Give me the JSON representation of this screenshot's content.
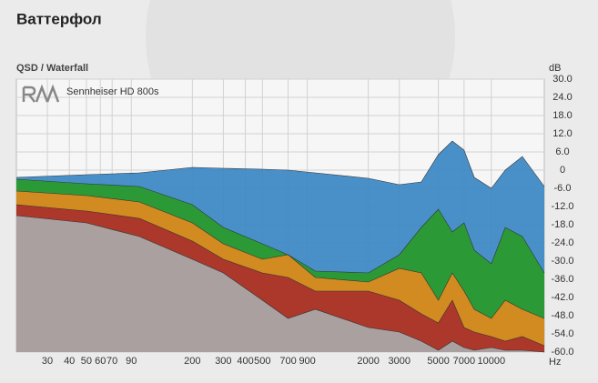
{
  "chart_data": {
    "type": "area",
    "title": "Ваттерфол",
    "subtitle": "QSD / Waterfall",
    "legend": "Sennheiser HD 800s",
    "y_label": "dB",
    "x_label": "Hz",
    "x_log": true,
    "xlim": [
      20,
      20000
    ],
    "ylim": [
      -60,
      30
    ],
    "xticks": [
      30,
      40,
      50,
      60,
      70,
      90,
      200,
      300,
      400,
      500,
      700,
      900,
      2000,
      3000,
      5000,
      7000,
      10000
    ],
    "yticks": [
      {
        "value": 30,
        "label": "30.0"
      },
      {
        "value": 24,
        "label": "24.0"
      },
      {
        "value": 18,
        "label": "18.0"
      },
      {
        "value": 12,
        "label": "12.0"
      },
      {
        "value": 6,
        "label": "6.0"
      },
      0,
      {
        "value": -6,
        "label": "-6.0"
      },
      {
        "value": -12,
        "label": "-12.0"
      },
      {
        "value": -18,
        "label": "-18.0"
      },
      {
        "value": -24,
        "label": "-24.0"
      },
      {
        "value": -30,
        "label": "-30.0"
      },
      {
        "value": -36,
        "label": "-36.0"
      },
      {
        "value": -42,
        "label": "-42.0"
      },
      {
        "value": -48,
        "label": "-48.0"
      },
      {
        "value": -54,
        "label": "-54.0"
      },
      {
        "value": -60,
        "label": "-60.0"
      }
    ],
    "grid": true,
    "x": [
      20,
      50,
      100,
      200,
      300,
      500,
      700,
      1000,
      2000,
      3000,
      4000,
      5000,
      6000,
      7000,
      8000,
      10000,
      12000,
      15000,
      20000
    ],
    "series": [
      {
        "color": "#3a87c4",
        "values": [
          -2.4,
          -1.5,
          -0.9,
          0.9,
          0.6,
          0.3,
          0,
          -0.9,
          -2.7,
          -4.8,
          -3.9,
          5.1,
          9.6,
          6.6,
          -2.4,
          -6,
          0,
          4.5,
          -5.4
        ]
      },
      {
        "color": "#2a9a2a",
        "values": [
          -3,
          -4.5,
          -5.4,
          -11.4,
          -18.9,
          -24.3,
          -27.9,
          -33.3,
          -33.9,
          -27.9,
          -18.9,
          -12.9,
          -20.4,
          -17.4,
          -26.4,
          -30.9,
          -18.9,
          -21.9,
          -33.9
        ]
      },
      {
        "color": "#e08a1e",
        "values": [
          -6.9,
          -8.4,
          -10.5,
          -17.4,
          -24.3,
          -29.4,
          -27.9,
          -35.4,
          -36.9,
          -32.4,
          -33.9,
          -42.9,
          -33.9,
          -39.9,
          -45.9,
          -48.9,
          -42.9,
          -45.9,
          -48.9
        ]
      },
      {
        "color": "#a8302c",
        "values": [
          -11.4,
          -13.5,
          -15.9,
          -23.4,
          -29.4,
          -33.9,
          -35.4,
          -39.9,
          -39.9,
          -42.9,
          -47.4,
          -50.4,
          -42.9,
          -51.9,
          -53.4,
          -54.9,
          -56.4,
          -54.9,
          -57.9
        ]
      },
      {
        "color": "#a9a9a9",
        "values": [
          -15,
          -17.4,
          -21.9,
          -29.4,
          -33.9,
          -42.9,
          -48.9,
          -45.9,
          -51.9,
          -53.4,
          -56.4,
          -59.4,
          -56.4,
          -58.5,
          -59.4,
          -58.5,
          -59.4,
          -59.4,
          -60
        ]
      }
    ]
  }
}
